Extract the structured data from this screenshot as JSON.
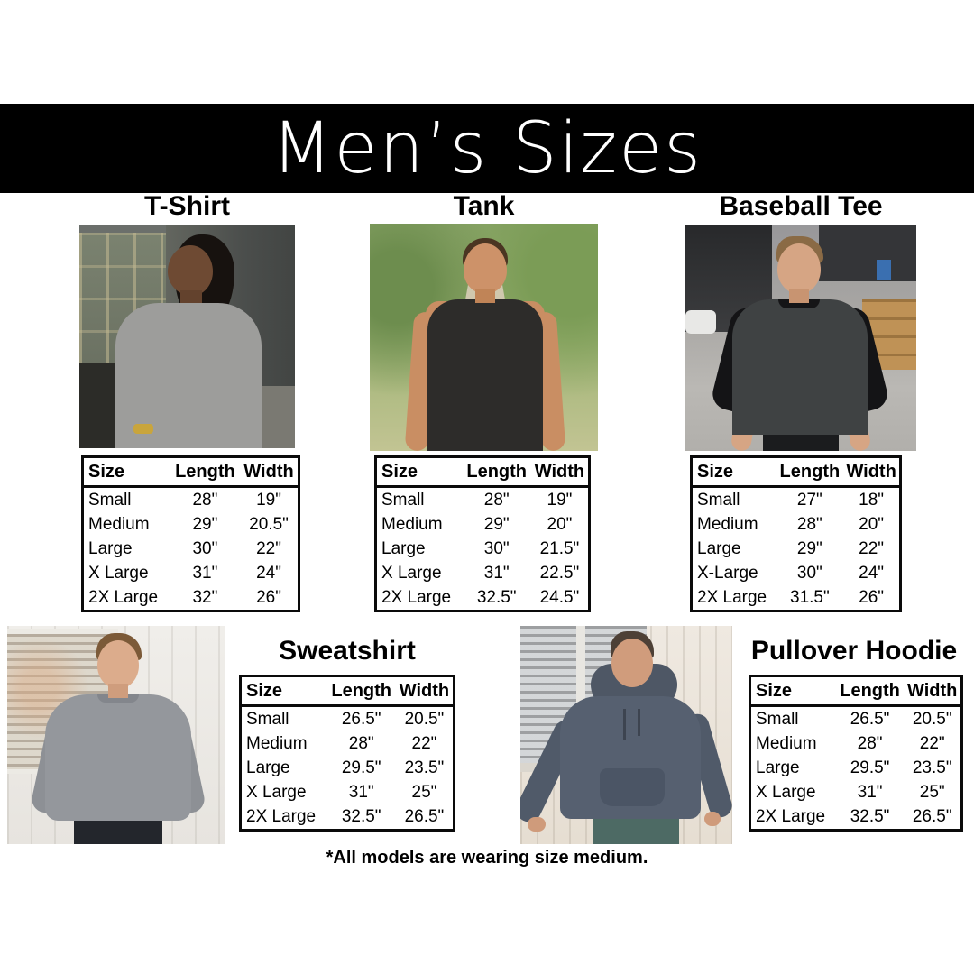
{
  "banner": {
    "title": "Men’s Sizes"
  },
  "columns": [
    "Size",
    "Length",
    "Width"
  ],
  "products": [
    {
      "name": "T-Shirt",
      "rows": [
        [
          "Small",
          "28\"",
          "19\""
        ],
        [
          "Medium",
          "29\"",
          "20.5\""
        ],
        [
          "Large",
          "30\"",
          "22\""
        ],
        [
          "X Large",
          "31\"",
          "24\""
        ],
        [
          "2X Large",
          "32\"",
          "26\""
        ]
      ]
    },
    {
      "name": "Tank",
      "rows": [
        [
          "Small",
          "28\"",
          "19\""
        ],
        [
          "Medium",
          "29\"",
          "20\""
        ],
        [
          "Large",
          "30\"",
          "21.5\""
        ],
        [
          "X Large",
          "31\"",
          "22.5\""
        ],
        [
          "2X Large",
          "32.5\"",
          "24.5\""
        ]
      ]
    },
    {
      "name": "Baseball Tee",
      "rows": [
        [
          "Small",
          "27\"",
          "18\""
        ],
        [
          "Medium",
          "28\"",
          "20\""
        ],
        [
          "Large",
          "29\"",
          "22\""
        ],
        [
          "X-Large",
          "30\"",
          "24\""
        ],
        [
          "2X Large",
          "31.5\"",
          "26\""
        ]
      ]
    },
    {
      "name": "Sweatshirt",
      "rows": [
        [
          "Small",
          "26.5\"",
          "20.5\""
        ],
        [
          "Medium",
          "28\"",
          "22\""
        ],
        [
          "Large",
          "29.5\"",
          "23.5\""
        ],
        [
          "X Large",
          "31\"",
          "25\""
        ],
        [
          "2X Large",
          "32.5\"",
          "26.5\""
        ]
      ]
    },
    {
      "name": "Pullover Hoodie",
      "rows": [
        [
          "Small",
          "26.5\"",
          "20.5\""
        ],
        [
          "Medium",
          "28\"",
          "22\""
        ],
        [
          "Large",
          "29.5\"",
          "23.5\""
        ],
        [
          "X Large",
          "31\"",
          "25\""
        ],
        [
          "2X Large",
          "32.5\"",
          "26.5\""
        ]
      ]
    }
  ],
  "footer": {
    "note": "*All models are wearing size medium."
  },
  "colors": {
    "banner_bg": "#000000",
    "banner_text": "#ffffff",
    "table_border": "#0a0a0a",
    "page_bg": "#ffffff"
  }
}
